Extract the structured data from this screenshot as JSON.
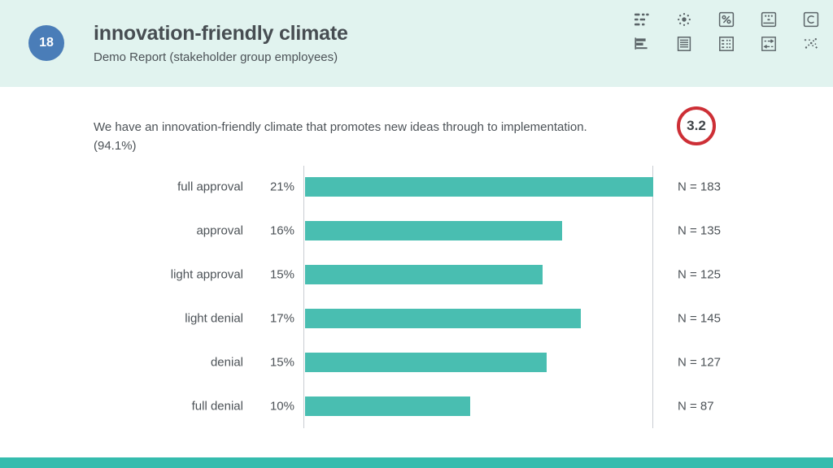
{
  "page": {
    "badge": "18",
    "title": "innovation-friendly climate",
    "subtitle": "Demo Report (stakeholder group employees)"
  },
  "toolbar": {
    "icons": [
      "values-list",
      "cluster",
      "percent",
      "scale",
      "letter-c",
      "bar-chart",
      "document",
      "table",
      "flow-arrows",
      "scatter"
    ]
  },
  "question": {
    "text": "We have an innovation-friendly climate that promotes new ideas through to implementation.",
    "response_share": "(94.1%)",
    "score": "3.2"
  },
  "chart_data": {
    "type": "bar",
    "orientation": "horizontal",
    "title": "We have an innovation-friendly climate that promotes new ideas through to implementation. (94.1%)",
    "score": 3.2,
    "categories": [
      "full approval",
      "approval",
      "light approval",
      "light denial",
      "denial",
      "full denial"
    ],
    "values_pct": [
      21,
      16,
      15,
      17,
      15,
      10
    ],
    "counts": [
      183,
      135,
      125,
      145,
      127,
      87
    ],
    "xlim_pct": [
      0,
      21
    ],
    "legend": "none",
    "grid": "left-and-right-axis-lines-only",
    "rows": [
      {
        "label": "full approval",
        "pct": "21%",
        "n": 183,
        "n_label": "N = 183"
      },
      {
        "label": "approval",
        "pct": "16%",
        "n": 135,
        "n_label": "N = 135"
      },
      {
        "label": "light approval",
        "pct": "15%",
        "n": 125,
        "n_label": "N = 125"
      },
      {
        "label": "light denial",
        "pct": "17%",
        "n": 145,
        "n_label": "N = 145"
      },
      {
        "label": "denial",
        "pct": "15%",
        "n": 127,
        "n_label": "N = 127"
      },
      {
        "label": "full denial",
        "pct": "10%",
        "n": 87,
        "n_label": "N = 87"
      }
    ]
  },
  "colors": {
    "header_bg": "#e1f3ef",
    "badge_blue": "#4a7db8",
    "bar_teal": "#49beb1",
    "score_red": "#cd2f36",
    "footer_teal": "#35bcae",
    "text_dark": "#474d52",
    "text": "#4c5257",
    "icon_gray": "#5b6468",
    "axis_gray": "#c9cdd2"
  }
}
